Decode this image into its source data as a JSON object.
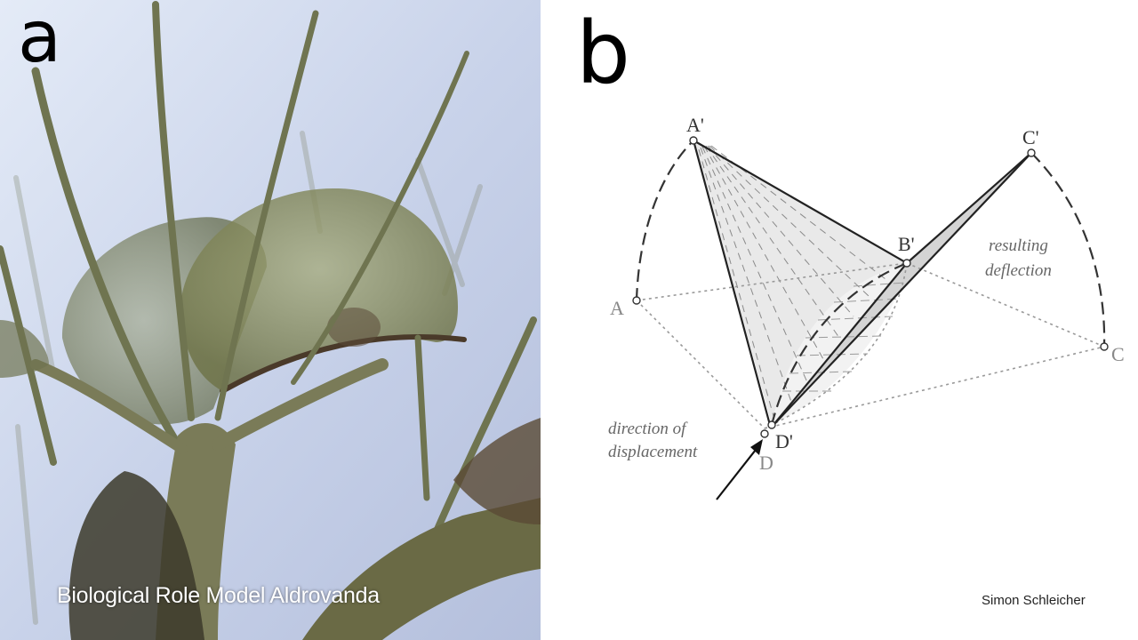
{
  "panel_a": {
    "letter": "a",
    "caption": "Biological Role Model Aldrovanda"
  },
  "panel_b": {
    "letter": "b",
    "credit": "Simon Schleicher",
    "point_labels": {
      "a_prime": "A'",
      "b_prime": "B'",
      "c_prime": "C'",
      "d_prime": "D'",
      "a": "A",
      "c": "C",
      "d": "D"
    },
    "annotations": {
      "resulting_deflection_line1": "resulting",
      "resulting_deflection_line2": "deflection",
      "direction_line1": "direction of",
      "direction_line2": "displacement"
    }
  },
  "colors": {
    "photo_background": "#c9d3ea",
    "plant_green": "#6e7a4a",
    "diagram_gray": "#9a9a9a"
  }
}
